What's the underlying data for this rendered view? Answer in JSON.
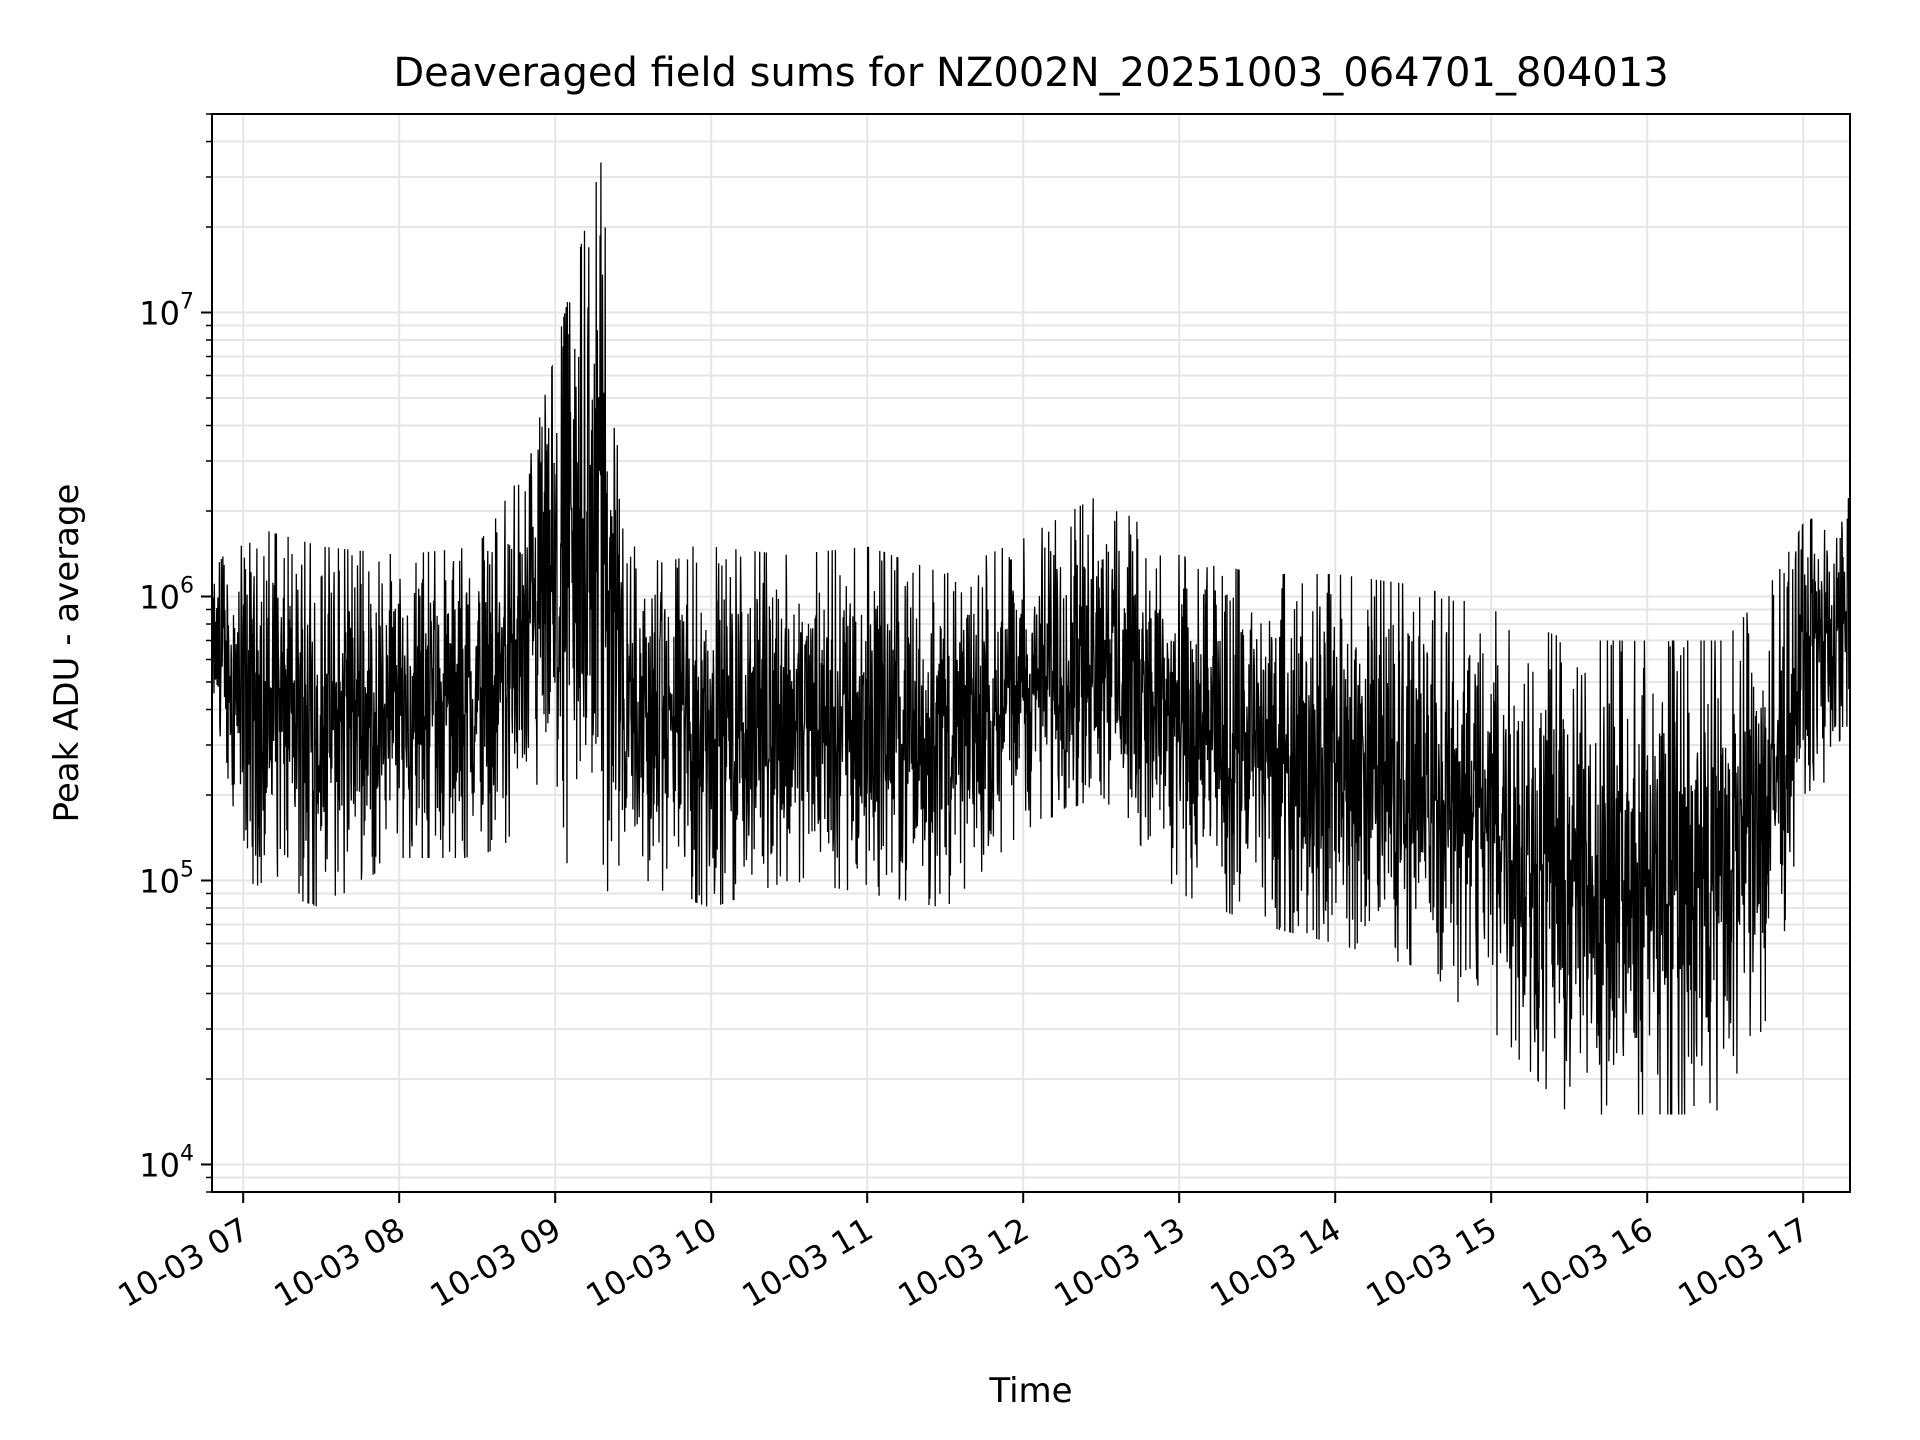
{
  "chart_data": {
    "type": "line",
    "title": "Deaveraged field sums for NZ002N_20251003_064701_804013",
    "xlabel": "Time",
    "ylabel": "Peak ADU - average",
    "yscale": "log",
    "ylim": [
      8000,
      50000000
    ],
    "xlim": [
      "10-03 06:48",
      "10-03 17:18"
    ],
    "x_ticks": [
      "10-03 07",
      "10-03 08",
      "10-03 09",
      "10-03 10",
      "10-03 11",
      "10-03 12",
      "10-03 13",
      "10-03 14",
      "10-03 15",
      "10-03 16",
      "10-03 17"
    ],
    "y_ticks": [
      {
        "base": "10",
        "exp": "4"
      },
      {
        "base": "10",
        "exp": "5"
      },
      {
        "base": "10",
        "exp": "6"
      },
      {
        "base": "10",
        "exp": "7"
      }
    ],
    "grid": true,
    "line_color": "#000000",
    "grid_color": "#e6e6e6",
    "series": [
      {
        "x": [
          "10-03 06:48",
          "10-03 07:00",
          "10-03 07:30",
          "10-03 08:00",
          "10-03 08:30",
          "10-03 08:50",
          "10-03 09:18",
          "10-03 09:30",
          "10-03 10:00",
          "10-03 10:30",
          "10-03 11:00",
          "10-03 11:30",
          "10-03 12:00",
          "10-03 12:30",
          "10-03 13:00",
          "10-03 13:30",
          "10-03 14:00",
          "10-03 14:30",
          "10-03 15:00",
          "10-03 15:30",
          "10-03 16:00",
          "10-03 16:30",
          "10-03 16:50",
          "10-03 17:00",
          "10-03 17:18"
        ],
        "y_max": [
          1200000,
          1800000,
          1500000,
          1400000,
          1500000,
          3000000,
          35000000,
          1500000,
          1500000,
          1400000,
          1500000,
          1200000,
          1600000,
          2300000,
          1400000,
          1200000,
          1200000,
          1100000,
          900000,
          700000,
          700000,
          700000,
          1200000,
          1800000,
          2300000
        ],
        "y_min": [
          400000,
          100000,
          80000,
          120000,
          120000,
          150000,
          90000,
          100000,
          80000,
          100000,
          90000,
          80000,
          150000,
          200000,
          90000,
          70000,
          60000,
          50000,
          30000,
          15000,
          15000,
          15000,
          40000,
          200000,
          250000
        ]
      }
    ]
  }
}
